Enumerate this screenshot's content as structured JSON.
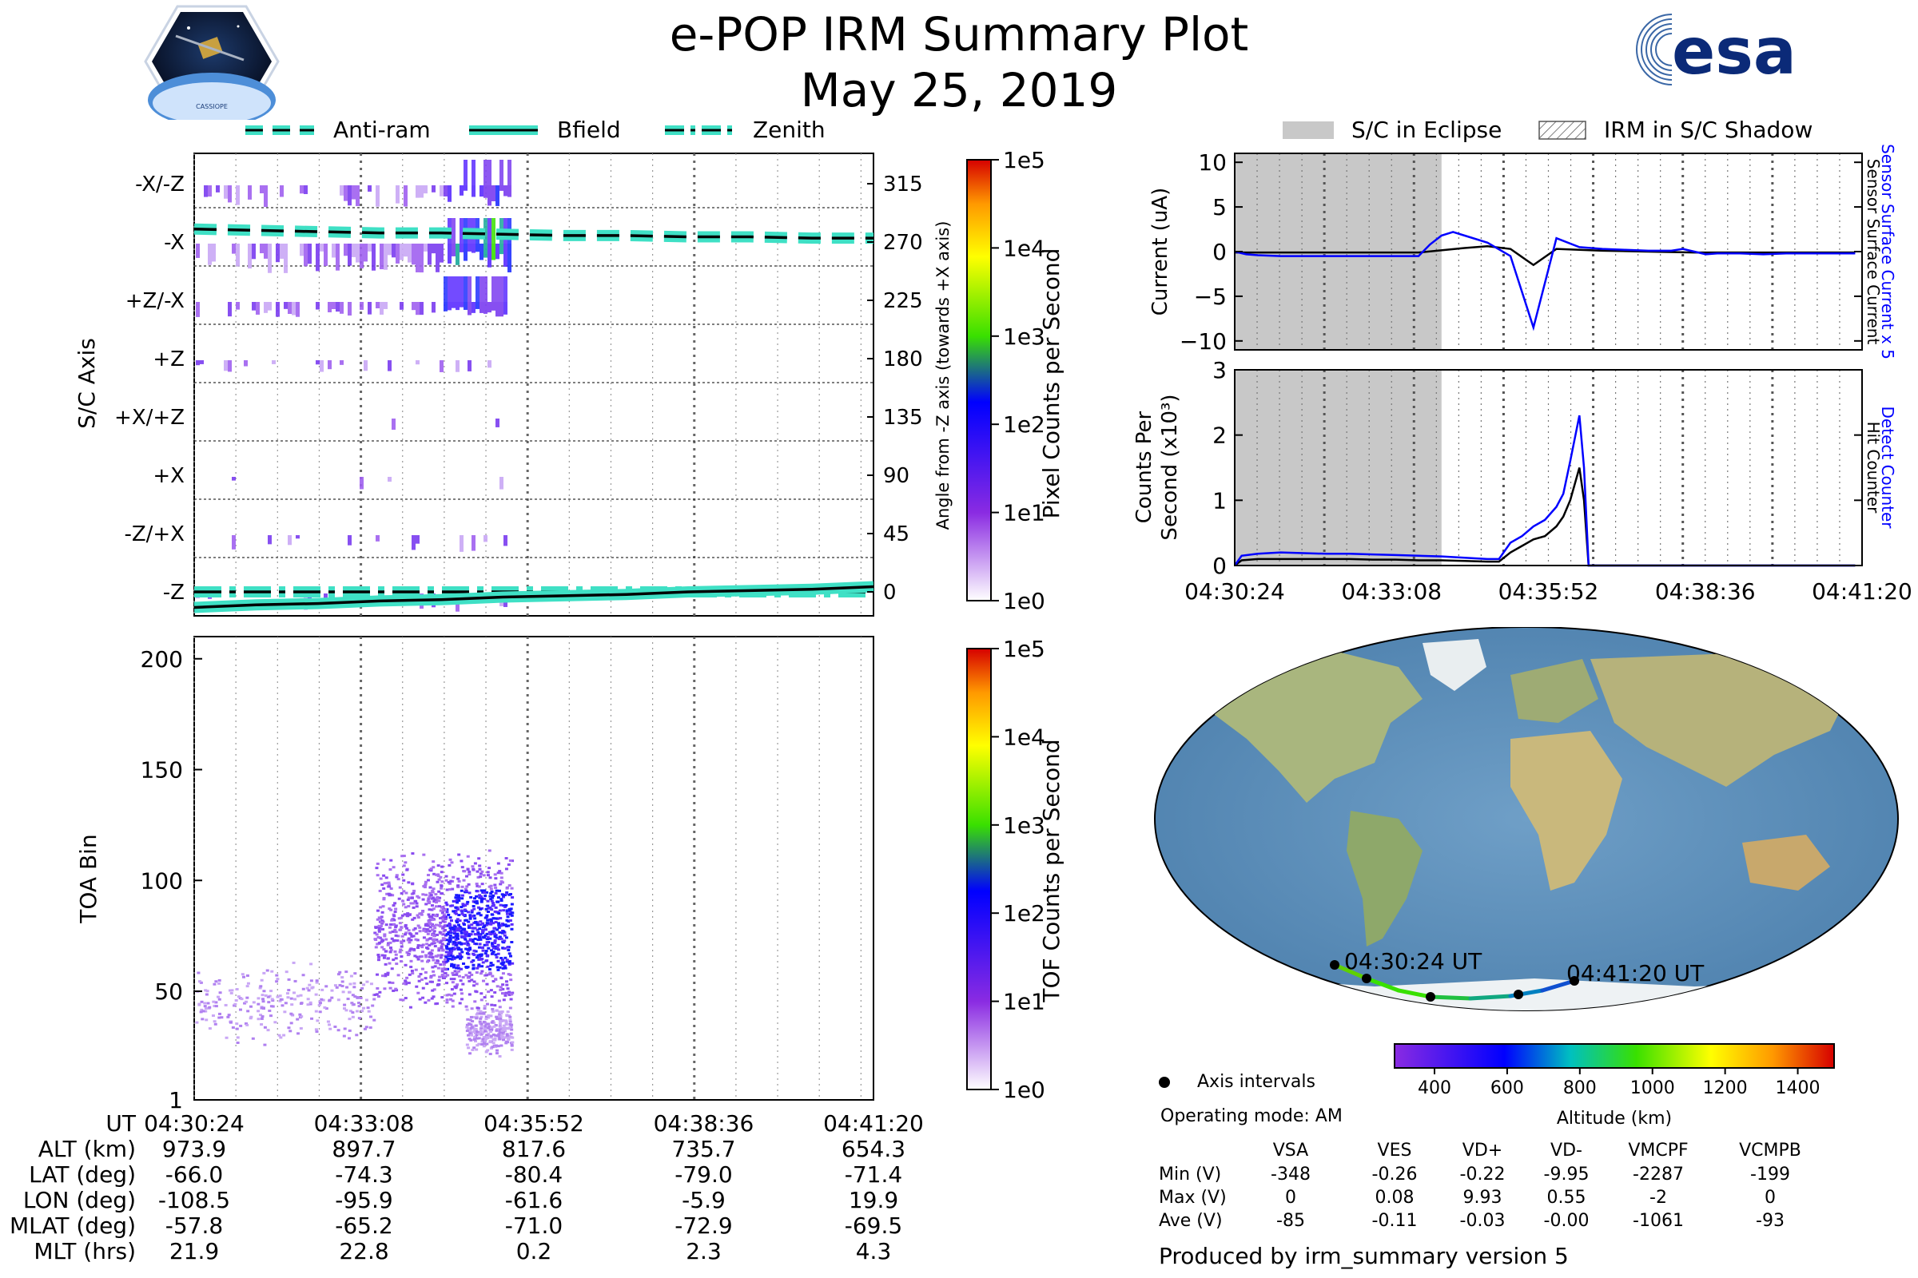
{
  "header": {
    "title": "e-POP IRM Summary Plot",
    "date": "May 25, 2019",
    "cassiope_logo_text": "CASSIOPE",
    "esa_logo_text": "esa"
  },
  "line_legend": {
    "anti_ram": "Anti-ram",
    "bfield": "Bfield",
    "zenith": "Zenith"
  },
  "eclipse_legend": {
    "eclipse": "S/C in Eclipse",
    "shadow": "IRM in S/C Shadow"
  },
  "colors": {
    "accent_cyan": "#3fe0c5",
    "sensor_blue": "#0000ff",
    "eclipse_gray": "#c8c8c8"
  },
  "chart_data": [
    {
      "type": "heatmap",
      "id": "pixel_panel",
      "ylabel": "S/C Axis",
      "ylabel_right": "Angle from -Z axis (towards +X axis)",
      "y_categories": [
        "-X/-Z",
        "-X",
        "+Z/-X",
        "+Z",
        "+X/+Z",
        "+X",
        "-Z/+X",
        "-Z"
      ],
      "y_right_ticks": [
        "315",
        "270",
        "225",
        "180",
        "135",
        "90",
        "45",
        "0"
      ],
      "colorbar_label": "Pixel Counts per Second",
      "colorbar_ticks": [
        "1e5",
        "1e4",
        "1e3",
        "1e2",
        "1e1",
        "1e0"
      ],
      "colorbar_colors": [
        "#d60000",
        "#ff9900",
        "#ffff00",
        "#39e000",
        "#0000ff",
        "#8a2be2",
        "#ffffff"
      ],
      "activity_end": "04:35:52",
      "lines": {
        "anti_ram_deg": [
          280,
          279,
          278,
          277,
          277,
          276,
          275,
          275,
          274,
          274,
          273,
          273
        ],
        "zenith_deg": [
          0,
          0,
          0,
          0,
          0,
          0,
          0,
          0,
          0,
          0,
          0,
          0
        ],
        "bfield_deg": [
          -12,
          -10,
          -9,
          -7,
          -6,
          -4,
          -3,
          -2,
          0,
          1,
          2,
          4
        ]
      }
    },
    {
      "type": "scatter",
      "id": "toa_panel",
      "ylabel": "TOA Bin",
      "y_ticks": [
        "200",
        "150",
        "100",
        "50",
        "1"
      ],
      "ylim": [
        1,
        210
      ],
      "colorbar_label": "TOF Counts per Second",
      "colorbar_ticks": [
        "1e5",
        "1e4",
        "1e3",
        "1e2",
        "1e1",
        "1e0"
      ],
      "x_ticks": [
        "04:30:24",
        "04:33:08",
        "04:35:52",
        "04:38:36",
        "04:41:20"
      ],
      "clusters": [
        {
          "x_start_min": 0.0,
          "x_end_min": 4.3,
          "y_min": 25,
          "y_max": 65,
          "level": "low"
        },
        {
          "x_start_min": 4.3,
          "x_end_min": 7.6,
          "y_min": 40,
          "y_max": 115,
          "level": "high"
        },
        {
          "x_start_min": 6.5,
          "x_end_min": 7.6,
          "y_min": 20,
          "y_max": 45,
          "level": "low"
        }
      ]
    },
    {
      "type": "line",
      "id": "current_panel",
      "ylabel": "Current (uA)",
      "right_label_blue": "Sensor Surface Current x 5",
      "right_label_black": "Sensor Surface Current",
      "y_ticks": [
        "10",
        "5",
        "0",
        "−5",
        "−10"
      ],
      "ylim": [
        -11,
        11
      ],
      "eclipse_end_min": 9.0,
      "series": [
        {
          "name": "Sensor Surface Current x 5",
          "color": "#0000ff",
          "x_min": [
            0,
            0.5,
            1,
            2,
            3,
            4,
            5,
            6,
            7,
            8,
            8.5,
            9,
            9.5,
            10,
            11,
            12,
            13,
            14,
            15,
            16,
            17,
            18,
            19,
            19.5,
            20,
            20.5,
            21,
            21.5,
            22,
            23,
            24,
            25,
            26,
            27
          ],
          "y": [
            0,
            -0.3,
            -0.4,
            -0.5,
            -0.5,
            -0.5,
            -0.5,
            -0.5,
            -0.5,
            -0.5,
            0.8,
            1.8,
            2.2,
            1.8,
            1.0,
            -0.5,
            -8.5,
            1.5,
            0.5,
            0.3,
            0.2,
            0.1,
            0.1,
            0.3,
            0.0,
            -0.3,
            -0.2,
            -0.2,
            -0.2,
            -0.3,
            -0.2,
            -0.2,
            -0.2,
            -0.2
          ]
        },
        {
          "name": "Sensor Surface Current",
          "color": "#000000",
          "x_min": [
            0,
            2,
            4,
            6,
            8,
            10,
            11,
            12,
            13,
            14,
            15,
            16,
            18,
            20,
            22,
            24,
            27
          ],
          "y": [
            -0.1,
            -0.1,
            -0.1,
            -0.1,
            -0.1,
            0.4,
            0.6,
            0.3,
            -1.5,
            0.3,
            0.2,
            0.1,
            0.0,
            -0.1,
            -0.1,
            -0.1,
            -0.1
          ]
        }
      ]
    },
    {
      "type": "line",
      "id": "counts_panel",
      "ylabel": "Counts Per Second (x10³)",
      "right_label_blue": "Detect Counter",
      "right_label_black": "Hit Counter",
      "y_ticks": [
        "3",
        "2",
        "1",
        "0"
      ],
      "ylim": [
        0,
        3
      ],
      "x_ticks": [
        "04:30:24",
        "04:33:08",
        "04:35:52",
        "04:38:36",
        "04:41:20"
      ],
      "series": [
        {
          "name": "Detect Counter",
          "color": "#0000ff",
          "x_min": [
            0,
            0.3,
            1,
            2,
            3,
            4,
            5,
            6,
            7,
            8,
            9,
            10,
            11,
            11.5,
            12,
            12.5,
            13,
            13.5,
            14,
            14.3,
            14.6,
            15,
            15.2,
            15.4,
            16,
            18,
            22,
            27
          ],
          "y": [
            0,
            0.15,
            0.18,
            0.2,
            0.19,
            0.18,
            0.18,
            0.17,
            0.16,
            0.15,
            0.14,
            0.12,
            0.1,
            0.1,
            0.35,
            0.45,
            0.6,
            0.7,
            0.9,
            1.1,
            1.6,
            2.3,
            1.5,
            0.0,
            0.0,
            0.0,
            0.0,
            0.0
          ]
        },
        {
          "name": "Hit Counter",
          "color": "#000000",
          "x_min": [
            0,
            0.3,
            1,
            2,
            3,
            4,
            5,
            6,
            7,
            8,
            9,
            10,
            11,
            11.5,
            12,
            12.5,
            13,
            13.5,
            14,
            14.3,
            14.6,
            15,
            15.2,
            15.4,
            16,
            18,
            22,
            27
          ],
          "y": [
            0,
            0.08,
            0.1,
            0.1,
            0.1,
            0.1,
            0.1,
            0.09,
            0.09,
            0.08,
            0.08,
            0.07,
            0.06,
            0.06,
            0.2,
            0.3,
            0.4,
            0.45,
            0.6,
            0.75,
            1.0,
            1.5,
            1.0,
            0.0,
            0.0,
            0.0,
            0.0,
            0.0
          ]
        }
      ]
    }
  ],
  "time_table": {
    "row_labels": [
      "UT",
      "ALT (km)",
      "LAT (deg)",
      "LON (deg)",
      "MLAT (deg)",
      "MLT (hrs)"
    ],
    "columns": [
      [
        "04:30:24",
        "973.9",
        "-66.0",
        "-108.5",
        "-57.8",
        "21.9"
      ],
      [
        "04:33:08",
        "897.7",
        "-74.3",
        "-95.9",
        "-65.2",
        "22.8"
      ],
      [
        "04:35:52",
        "817.6",
        "-80.4",
        "-61.6",
        "-71.0",
        "0.2"
      ],
      [
        "04:38:36",
        "735.7",
        "-79.0",
        "-5.9",
        "-72.9",
        "2.3"
      ],
      [
        "04:41:20",
        "654.3",
        "-71.4",
        "19.9",
        "-69.5",
        "4.3"
      ]
    ]
  },
  "map": {
    "start_label": "04:30:24 UT",
    "end_label": "04:41:20 UT",
    "axis_intervals_label": "Axis intervals",
    "operating_mode": "Operating mode: AM",
    "altitude_label": "Altitude (km)",
    "altitude_ticks": [
      "400",
      "600",
      "800",
      "1000",
      "1200",
      "1400"
    ]
  },
  "voltage_table": {
    "headers": [
      "VSA",
      "VES",
      "VD+",
      "VD-",
      "VMCPF",
      "VCMPB"
    ],
    "rows": [
      {
        "label": "Min (V)",
        "values": [
          "-348",
          "-0.26",
          "-0.22",
          "-9.95",
          "-2287",
          "-199"
        ]
      },
      {
        "label": "Max (V)",
        "values": [
          "0",
          "0.08",
          "9.93",
          "0.55",
          "-2",
          "0"
        ]
      },
      {
        "label": "Ave (V)",
        "values": [
          "-85",
          "-0.11",
          "-0.03",
          "-0.00",
          "-1061",
          "-93"
        ]
      }
    ]
  },
  "footer": {
    "produced_by": "Produced by irm_summary version 5"
  }
}
